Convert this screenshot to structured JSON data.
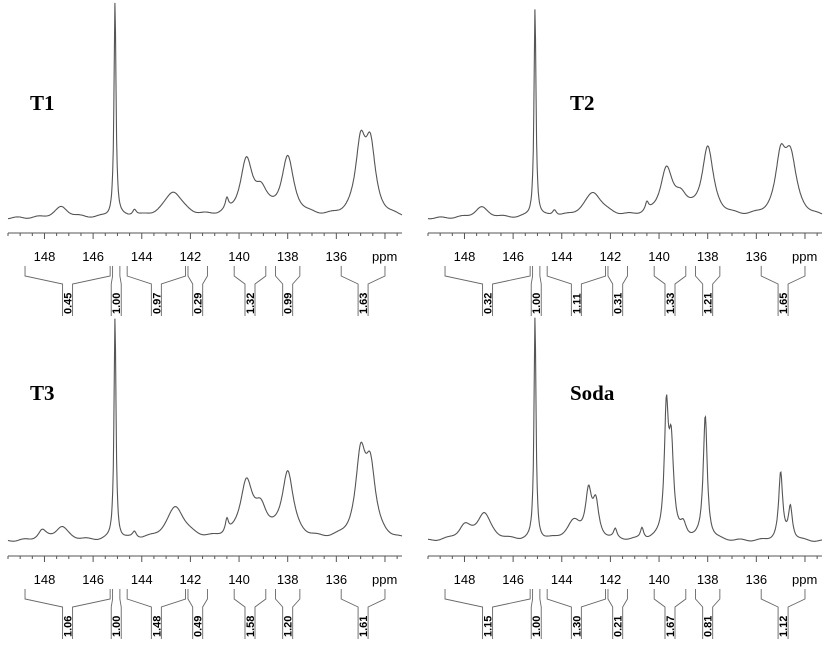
{
  "chart_data": [
    {
      "type": "line",
      "title": "T1",
      "xlabel": "ppm",
      "xlim": [
        149.5,
        133.3
      ],
      "x_ticks": [
        148,
        146,
        144,
        142,
        140,
        138,
        136
      ],
      "peaks": [
        {
          "ppm": 145.1,
          "height": 1.0,
          "width": 0.05
        },
        {
          "ppm": 147.3,
          "height": 0.05,
          "width": 0.35
        },
        {
          "ppm": 144.3,
          "height": 0.03,
          "width": 0.1
        },
        {
          "ppm": 142.7,
          "height": 0.12,
          "width": 0.45
        },
        {
          "ppm": 140.5,
          "height": 0.05,
          "width": 0.08
        },
        {
          "ppm": 139.7,
          "height": 0.25,
          "width": 0.3
        },
        {
          "ppm": 139.1,
          "height": 0.1,
          "width": 0.3
        },
        {
          "ppm": 138.0,
          "height": 0.27,
          "width": 0.3
        },
        {
          "ppm": 135.0,
          "height": 0.32,
          "width": 0.25
        },
        {
          "ppm": 134.6,
          "height": 0.3,
          "width": 0.25
        }
      ],
      "integrals": [
        {
          "from": 148.8,
          "to": 145.3,
          "value": "0.45"
        },
        {
          "from": 145.2,
          "to": 144.9,
          "value": "1.00"
        },
        {
          "from": 144.6,
          "to": 142.2,
          "value": "0.97"
        },
        {
          "from": 142.1,
          "to": 141.3,
          "value": "0.29"
        },
        {
          "from": 140.2,
          "to": 138.9,
          "value": "1.32"
        },
        {
          "from": 138.5,
          "to": 137.5,
          "value": "0.99"
        },
        {
          "from": 135.8,
          "to": 134.0,
          "value": "1.63"
        }
      ]
    },
    {
      "type": "line",
      "title": "T2",
      "xlabel": "ppm",
      "xlim": [
        149.5,
        133.3
      ],
      "x_ticks": [
        148,
        146,
        144,
        142,
        140,
        138,
        136
      ],
      "peaks": [
        {
          "ppm": 145.1,
          "height": 1.0,
          "width": 0.05
        },
        {
          "ppm": 147.3,
          "height": 0.05,
          "width": 0.35
        },
        {
          "ppm": 144.3,
          "height": 0.03,
          "width": 0.1
        },
        {
          "ppm": 142.7,
          "height": 0.12,
          "width": 0.45
        },
        {
          "ppm": 140.5,
          "height": 0.04,
          "width": 0.08
        },
        {
          "ppm": 139.7,
          "height": 0.22,
          "width": 0.3
        },
        {
          "ppm": 139.1,
          "height": 0.08,
          "width": 0.3
        },
        {
          "ppm": 138.0,
          "height": 0.33,
          "width": 0.28
        },
        {
          "ppm": 135.0,
          "height": 0.25,
          "width": 0.25
        },
        {
          "ppm": 134.6,
          "height": 0.27,
          "width": 0.3
        }
      ],
      "integrals": [
        {
          "from": 148.8,
          "to": 145.3,
          "value": "0.32"
        },
        {
          "from": 145.2,
          "to": 144.9,
          "value": "1.00"
        },
        {
          "from": 144.6,
          "to": 142.2,
          "value": "1.11"
        },
        {
          "from": 142.1,
          "to": 141.3,
          "value": "0.31"
        },
        {
          "from": 140.2,
          "to": 138.9,
          "value": "1.33"
        },
        {
          "from": 138.5,
          "to": 137.5,
          "value": "1.21"
        },
        {
          "from": 135.8,
          "to": 134.0,
          "value": "1.65"
        }
      ]
    },
    {
      "type": "line",
      "title": "T3",
      "xlabel": "ppm",
      "xlim": [
        149.5,
        133.3
      ],
      "x_ticks": [
        148,
        146,
        144,
        142,
        140,
        138,
        136
      ],
      "peaks": [
        {
          "ppm": 145.1,
          "height": 1.0,
          "width": 0.05
        },
        {
          "ppm": 147.3,
          "height": 0.06,
          "width": 0.35
        },
        {
          "ppm": 148.1,
          "height": 0.04,
          "width": 0.2
        },
        {
          "ppm": 144.3,
          "height": 0.03,
          "width": 0.1
        },
        {
          "ppm": 142.6,
          "height": 0.15,
          "width": 0.45
        },
        {
          "ppm": 140.5,
          "height": 0.06,
          "width": 0.08
        },
        {
          "ppm": 139.7,
          "height": 0.25,
          "width": 0.3
        },
        {
          "ppm": 139.1,
          "height": 0.12,
          "width": 0.3
        },
        {
          "ppm": 138.0,
          "height": 0.3,
          "width": 0.28
        },
        {
          "ppm": 135.0,
          "height": 0.35,
          "width": 0.25
        },
        {
          "ppm": 134.6,
          "height": 0.3,
          "width": 0.25
        }
      ],
      "integrals": [
        {
          "from": 148.8,
          "to": 145.3,
          "value": "1.06"
        },
        {
          "from": 145.2,
          "to": 144.9,
          "value": "1.00"
        },
        {
          "from": 144.6,
          "to": 142.2,
          "value": "1.48"
        },
        {
          "from": 142.1,
          "to": 141.3,
          "value": "0.49"
        },
        {
          "from": 140.2,
          "to": 138.9,
          "value": "1.58"
        },
        {
          "from": 138.5,
          "to": 137.5,
          "value": "1.20"
        },
        {
          "from": 135.8,
          "to": 134.0,
          "value": "1.61"
        }
      ]
    },
    {
      "type": "line",
      "title": "Soda",
      "xlabel": "ppm",
      "xlim": [
        149.5,
        133.3
      ],
      "x_ticks": [
        148,
        146,
        144,
        142,
        140,
        138,
        136
      ],
      "peaks": [
        {
          "ppm": 145.1,
          "height": 1.0,
          "width": 0.05
        },
        {
          "ppm": 147.2,
          "height": 0.12,
          "width": 0.35
        },
        {
          "ppm": 148.0,
          "height": 0.06,
          "width": 0.3
        },
        {
          "ppm": 143.5,
          "height": 0.08,
          "width": 0.35
        },
        {
          "ppm": 142.9,
          "height": 0.2,
          "width": 0.15
        },
        {
          "ppm": 142.6,
          "height": 0.15,
          "width": 0.15
        },
        {
          "ppm": 141.8,
          "height": 0.04,
          "width": 0.08
        },
        {
          "ppm": 140.7,
          "height": 0.05,
          "width": 0.08
        },
        {
          "ppm": 139.7,
          "height": 0.55,
          "width": 0.1
        },
        {
          "ppm": 139.5,
          "height": 0.4,
          "width": 0.12
        },
        {
          "ppm": 139.0,
          "height": 0.06,
          "width": 0.15
        },
        {
          "ppm": 138.1,
          "height": 0.56,
          "width": 0.1
        },
        {
          "ppm": 135.0,
          "height": 0.3,
          "width": 0.1
        },
        {
          "ppm": 134.6,
          "height": 0.15,
          "width": 0.1
        }
      ],
      "integrals": [
        {
          "from": 148.8,
          "to": 145.3,
          "value": "1.15"
        },
        {
          "from": 145.2,
          "to": 144.9,
          "value": "1.00"
        },
        {
          "from": 144.6,
          "to": 142.2,
          "value": "1.30"
        },
        {
          "from": 142.1,
          "to": 141.3,
          "value": "0.21"
        },
        {
          "from": 140.2,
          "to": 138.9,
          "value": "1.67"
        },
        {
          "from": 138.5,
          "to": 137.5,
          "value": "0.81"
        },
        {
          "from": 135.8,
          "to": 134.0,
          "value": "1.12"
        }
      ]
    }
  ]
}
